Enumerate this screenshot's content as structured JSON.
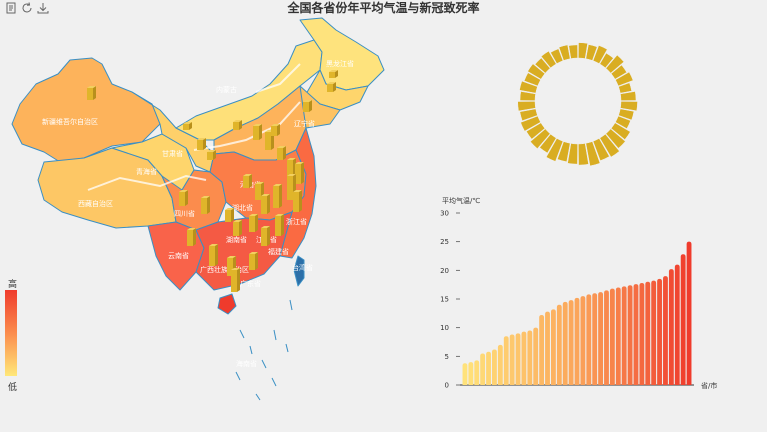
{
  "title": "全国各省份年平均气温与新冠致死率",
  "toolbar": {
    "icons": [
      "data-view-icon",
      "refresh-icon",
      "download-icon"
    ]
  },
  "visual_map": {
    "high_label": "高",
    "low_label": "低",
    "colors": [
      "#ef3b2c",
      "#fb8c4d",
      "#ffe879"
    ]
  },
  "map_labels": [
    "新疆维吾尔自治区",
    "内蒙古",
    "黑龙江省",
    "辽宁省",
    "甘肃省",
    "青海省",
    "西藏自治区",
    "河南省",
    "四川省",
    "湖北省",
    "湖南省",
    "江西省",
    "浙江省",
    "福建省",
    "云南省",
    "广西壮族自治区",
    "广东省",
    "海南省",
    "台湾省"
  ],
  "chart_data": [
    {
      "type": "bar",
      "xlabel": "省/市",
      "ylabel": "平均气温/℃",
      "ylim": [
        0,
        30
      ],
      "yticks": [
        0,
        5,
        10,
        15,
        20,
        25,
        30
      ],
      "grid": false,
      "values": [
        3.8,
        4.0,
        4.3,
        5.5,
        5.8,
        6.2,
        7.0,
        8.5,
        8.8,
        9.0,
        9.3,
        9.5,
        10.0,
        12.2,
        12.8,
        13.2,
        14.0,
        14.5,
        14.8,
        15.2,
        15.5,
        15.8,
        16.0,
        16.2,
        16.5,
        16.8,
        17.0,
        17.2,
        17.4,
        17.6,
        17.8,
        18.0,
        18.2,
        18.5,
        19.0,
        20.2,
        21.0,
        22.8,
        25.0
      ]
    },
    {
      "type": "bar",
      "polar": true,
      "values": [
        0.6,
        0.55,
        0.65,
        0.45,
        0.7,
        0.5,
        0.62,
        0.4,
        0.58,
        0.66,
        0.52,
        0.48,
        0.72,
        0.8,
        0.95,
        0.88,
        1.0,
        0.9,
        0.85,
        0.78,
        0.92,
        0.7,
        0.82,
        0.68,
        0.75,
        0.64,
        0.7,
        0.58,
        0.66,
        0.55,
        0.6,
        0.5,
        0.57,
        0.46,
        0.53,
        0.48
      ]
    }
  ]
}
